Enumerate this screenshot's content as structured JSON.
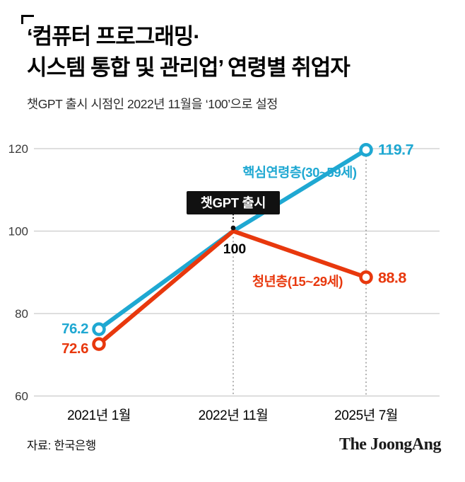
{
  "header": {
    "title_line1": "‘컴퓨터 프로그래밍·",
    "title_line2": "시스템 통합 및 관리업’ 연령별 취업자",
    "subtitle": "챗GPT 출시 시점인 2022년 11월을 ‘100’으로 설정"
  },
  "chart_data": {
    "type": "line",
    "x": [
      "2021년 1월",
      "2022년 11월",
      "2025년 7월"
    ],
    "yticks": [
      60,
      80,
      100,
      120
    ],
    "ylim": [
      60,
      125
    ],
    "grid": true,
    "legend_position": "inline",
    "series": [
      {
        "name": "핵심연령층(30~59세)",
        "color": "#1fa8d2",
        "values": [
          76.2,
          100,
          119.7
        ],
        "start_label": "76.2",
        "end_label": "119.7"
      },
      {
        "name": "청년층(15~29세)",
        "color": "#e8380d",
        "values": [
          72.6,
          100,
          88.8
        ],
        "start_label": "72.6",
        "end_label": "88.8"
      }
    ],
    "annotation": {
      "label": "챗GPT 출시",
      "x": "2022년 11월",
      "value": 100,
      "value_label": "100"
    }
  },
  "footer": {
    "source": "자료: 한국은행",
    "brand": "The JoongAng"
  }
}
